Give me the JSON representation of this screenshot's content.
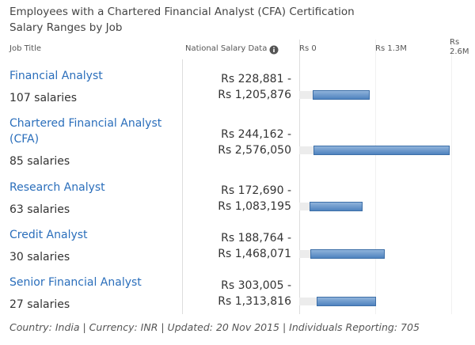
{
  "title": [
    "Employees with a Chartered Financial Analyst (CFA) Certification",
    "Salary Ranges by Job"
  ],
  "header": {
    "job_title": "Job Title",
    "salary_data": "National Salary Data"
  },
  "axis": {
    "xlim": [
      0,
      2600000
    ],
    "xticks": [
      {
        "value": 0,
        "label": "Rs 0"
      },
      {
        "value": 1300000,
        "label": "Rs 1.3M"
      },
      {
        "value": 2600000,
        "label": "Rs 2.6M"
      }
    ]
  },
  "rows": [
    {
      "job": "Financial Analyst",
      "salaries": "107 salaries",
      "min": 228881,
      "min_label": "Rs 228,881 -",
      "max": 1205876,
      "max_label": "Rs 1,205,876"
    },
    {
      "job": "Chartered Financial Analyst (CFA)",
      "salaries": "85 salaries",
      "min": 244162,
      "min_label": "Rs 244,162 -",
      "max": 2576050,
      "max_label": "Rs 2,576,050"
    },
    {
      "job": "Research Analyst",
      "salaries": "63 salaries",
      "min": 172690,
      "min_label": "Rs 172,690 -",
      "max": 1083195,
      "max_label": "Rs 1,083,195"
    },
    {
      "job": "Credit Analyst",
      "salaries": "30 salaries",
      "min": 188764,
      "min_label": "Rs 188,764 -",
      "max": 1468071,
      "max_label": "Rs 1,468,071"
    },
    {
      "job": "Senior Financial Analyst",
      "salaries": "27 salaries",
      "min": 303005,
      "min_label": "Rs 303,005 -",
      "max": 1313816,
      "max_label": "Rs 1,313,816"
    }
  ],
  "footer": "Country: India | Currency: INR | Updated: 20 Nov 2015 | Individuals Reporting: 705"
}
